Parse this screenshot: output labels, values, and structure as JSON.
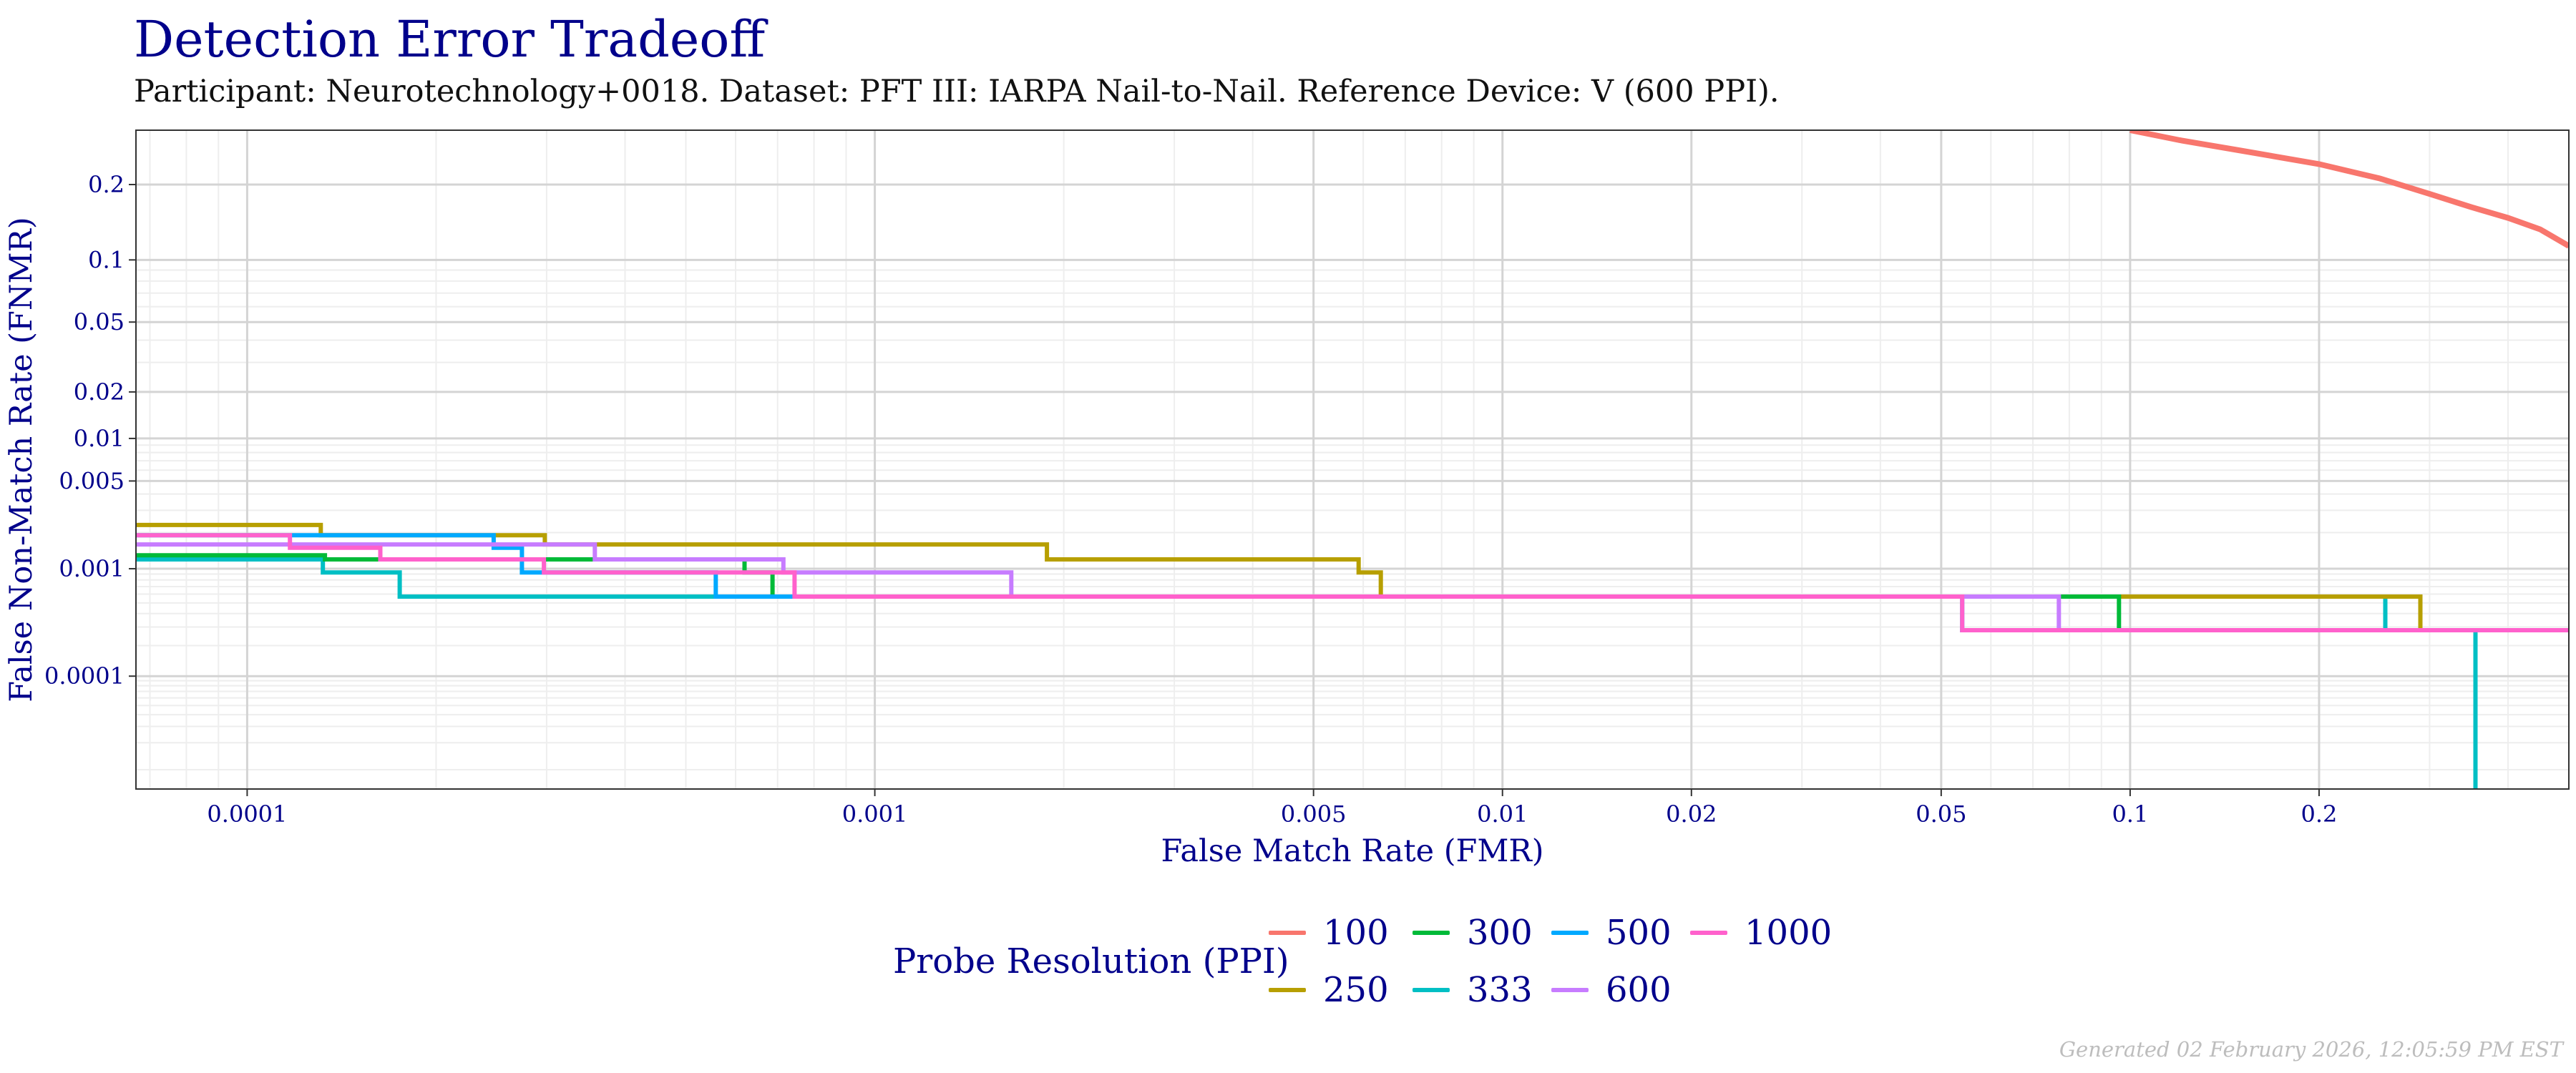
{
  "title": "Detection Error Tradeoff",
  "subtitle": "Participant: Neurotechnology+0018. Dataset: PFT III: IARPA Nail-to-Nail. Reference Device: V (600 PPI).",
  "footer": "Generated 02 February 2026, 12:05:59 PM EST",
  "colors": {
    "title": "#00008B",
    "grid_major": "#d9d9d9",
    "grid_minor": "#eeeeee",
    "panel_border": "#333333"
  },
  "chart_data": {
    "type": "line",
    "title": "Detection Error Tradeoff",
    "subtitle": "Participant: Neurotechnology+0018. Dataset: PFT III: IARPA Nail-to-Nail. Reference Device: V (600 PPI).",
    "xlabel": "False Match Rate (FMR)",
    "ylabel": "False Non-Match Rate (FNMR)",
    "x_scale": "log",
    "y_scale": "probit",
    "xlim": [
      6.65e-05,
      0.5
    ],
    "ylim": [
      6e-06,
      0.3
    ],
    "x_ticks": [
      {
        "value": 0.0001,
        "label": "0.0001"
      },
      {
        "value": 0.001,
        "label": "0.001"
      },
      {
        "value": 0.005,
        "label": "0.005"
      },
      {
        "value": 0.01,
        "label": "0.01"
      },
      {
        "value": 0.02,
        "label": "0.02"
      },
      {
        "value": 0.05,
        "label": "0.05"
      },
      {
        "value": 0.1,
        "label": "0.1"
      },
      {
        "value": 0.2,
        "label": "0.2"
      }
    ],
    "y_ticks": [
      {
        "value": 0.2,
        "label": "0.2"
      },
      {
        "value": 0.1,
        "label": "0.1"
      },
      {
        "value": 0.05,
        "label": "0.05"
      },
      {
        "value": 0.02,
        "label": "0.02"
      },
      {
        "value": 0.01,
        "label": "0.01"
      },
      {
        "value": 0.005,
        "label": "0.005"
      },
      {
        "value": 0.001,
        "label": "0.001"
      },
      {
        "value": 0.0001,
        "label": "0.0001"
      }
    ],
    "grid": true,
    "legend": {
      "title": "Probe Resolution (PPI)",
      "placement": "bottom"
    },
    "series": [
      {
        "name": "100",
        "color": "#F8766D",
        "points": [
          [
            0.1,
            0.3
          ],
          [
            0.12,
            0.28
          ],
          [
            0.15,
            0.26
          ],
          [
            0.2,
            0.235
          ],
          [
            0.25,
            0.21
          ],
          [
            0.3,
            0.185
          ],
          [
            0.35,
            0.165
          ],
          [
            0.4,
            0.15
          ],
          [
            0.45,
            0.135
          ],
          [
            0.5,
            0.115
          ]
        ]
      },
      {
        "name": "250",
        "color": "#B79F00",
        "points": [
          [
            6.65e-05,
            0.0023
          ],
          [
            0.000131,
            0.0023
          ],
          [
            0.000131,
            0.0019
          ],
          [
            0.000298,
            0.0019
          ],
          [
            0.000298,
            0.0016
          ],
          [
            0.00188,
            0.0016
          ],
          [
            0.00188,
            0.0012
          ],
          [
            0.0059,
            0.0012
          ],
          [
            0.0059,
            0.00093
          ],
          [
            0.0064,
            0.00093
          ],
          [
            0.0064,
            0.00057
          ],
          [
            0.29,
            0.00057
          ],
          [
            0.29,
            0.00028
          ],
          [
            0.5,
            0.00028
          ]
        ]
      },
      {
        "name": "300",
        "color": "#00BA38",
        "points": [
          [
            6.65e-05,
            0.0013
          ],
          [
            0.000133,
            0.0013
          ],
          [
            0.000133,
            0.0012
          ],
          [
            0.00062,
            0.0012
          ],
          [
            0.00062,
            0.00093
          ],
          [
            0.000687,
            0.00093
          ],
          [
            0.000687,
            0.00057
          ],
          [
            0.096,
            0.00057
          ],
          [
            0.096,
            0.00028
          ],
          [
            0.5,
            0.00028
          ]
        ]
      },
      {
        "name": "333",
        "color": "#00BFC4",
        "points": [
          [
            6.65e-05,
            0.0012
          ],
          [
            0.000132,
            0.0012
          ],
          [
            0.000132,
            0.00093
          ],
          [
            0.000175,
            0.00093
          ],
          [
            0.000175,
            0.00057
          ],
          [
            0.255,
            0.00057
          ],
          [
            0.255,
            0.00028
          ],
          [
            0.355,
            0.00028
          ],
          [
            0.355,
            6e-06
          ]
        ]
      },
      {
        "name": "500",
        "color": "#00A9FF",
        "points": [
          [
            6.65e-05,
            0.0019
          ],
          [
            0.000247,
            0.0019
          ],
          [
            0.000247,
            0.0015
          ],
          [
            0.000274,
            0.0015
          ],
          [
            0.000274,
            0.00093
          ],
          [
            0.000558,
            0.00093
          ],
          [
            0.000558,
            0.00057
          ],
          [
            0.054,
            0.00057
          ],
          [
            0.054,
            0.00028
          ],
          [
            0.5,
            0.00028
          ]
        ]
      },
      {
        "name": "600",
        "color": "#C77CFF",
        "points": [
          [
            6.65e-05,
            0.0016
          ],
          [
            0.000358,
            0.0016
          ],
          [
            0.000358,
            0.0012
          ],
          [
            0.000715,
            0.0012
          ],
          [
            0.000715,
            0.00093
          ],
          [
            0.00165,
            0.00093
          ],
          [
            0.00165,
            0.00057
          ],
          [
            0.077,
            0.00057
          ],
          [
            0.077,
            0.00028
          ],
          [
            0.5,
            0.00028
          ]
        ]
      },
      {
        "name": "1000",
        "color": "#FF61CC",
        "points": [
          [
            6.65e-05,
            0.0019
          ],
          [
            0.000117,
            0.0019
          ],
          [
            0.000117,
            0.0015
          ],
          [
            0.000163,
            0.0015
          ],
          [
            0.000163,
            0.0012
          ],
          [
            0.000297,
            0.0012
          ],
          [
            0.000297,
            0.00093
          ],
          [
            0.000745,
            0.00093
          ],
          [
            0.000745,
            0.00057
          ],
          [
            0.054,
            0.00057
          ],
          [
            0.054,
            0.00028
          ],
          [
            0.5,
            0.00028
          ]
        ]
      }
    ]
  },
  "legend_items": [
    {
      "label": "100",
      "color": "#F8766D"
    },
    {
      "label": "250",
      "color": "#B79F00"
    },
    {
      "label": "300",
      "color": "#00BA38"
    },
    {
      "label": "333",
      "color": "#00BFC4"
    },
    {
      "label": "500",
      "color": "#00A9FF"
    },
    {
      "label": "600",
      "color": "#C77CFF"
    },
    {
      "label": "1000",
      "color": "#FF61CC"
    }
  ]
}
